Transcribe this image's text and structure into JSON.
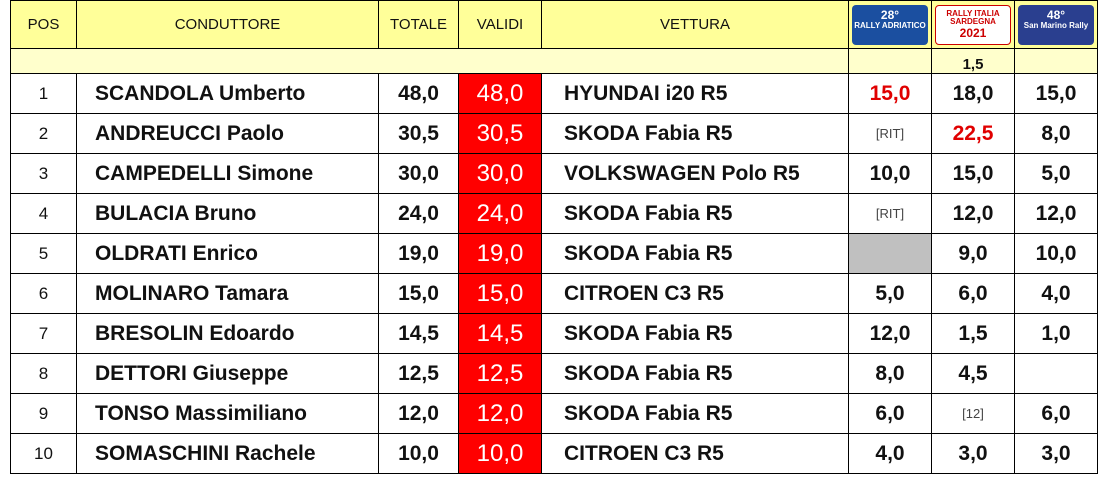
{
  "header": {
    "pos": "POS",
    "driver": "CONDUTTORE",
    "total": "TOTALE",
    "valid": "VALIDI",
    "car": "VETTURA",
    "events": [
      {
        "number": "28°",
        "name": "RALLY ADRIATICO"
      },
      {
        "number": "2021",
        "name": "RALLY ITALIA SARDEGNA"
      },
      {
        "number": "48°",
        "name": "San Marino Rally"
      }
    ],
    "coefficient": "1,5"
  },
  "table": {
    "rows": [
      [
        "1",
        "SCANDOLA Umberto",
        "48,0",
        "48,0",
        "HYUNDAI i20 R5",
        "15,0",
        "18,0",
        "15,0"
      ],
      [
        "2",
        "ANDREUCCI Paolo",
        "30,5",
        "30,5",
        "SKODA Fabia R5",
        "[RIT]",
        "22,5",
        "8,0"
      ],
      [
        "3",
        "CAMPEDELLI Simone",
        "30,0",
        "30,0",
        "VOLKSWAGEN Polo R5",
        "10,0",
        "15,0",
        "5,0"
      ],
      [
        "4",
        "BULACIA Bruno",
        "24,0",
        "24,0",
        "SKODA Fabia R5",
        "[RIT]",
        "12,0",
        "12,0"
      ],
      [
        "5",
        "OLDRATI Enrico",
        "19,0",
        "19,0",
        "SKODA Fabia R5",
        null,
        "9,0",
        "10,0"
      ],
      [
        "6",
        "MOLINARO Tamara",
        "15,0",
        "15,0",
        "CITROEN C3 R5",
        "5,0",
        "6,0",
        "4,0"
      ],
      [
        "7",
        "BRESOLIN Edoardo",
        "14,5",
        "14,5",
        "SKODA Fabia R5",
        "12,0",
        "1,5",
        "1,0"
      ],
      [
        "8",
        "DETTORI Giuseppe",
        "12,5",
        "12,5",
        "SKODA Fabia R5",
        "8,0",
        "4,5",
        null
      ],
      [
        "9",
        "TONSO Massimiliano",
        "12,0",
        "12,0",
        "SKODA Fabia R5",
        "6,0",
        "[12]",
        "6,0"
      ],
      [
        "10",
        "SOMASCHINI Rachele",
        "10,0",
        "10,0",
        "CITROEN C3 R5",
        "4,0",
        "3,0",
        "3,0"
      ]
    ]
  }
}
